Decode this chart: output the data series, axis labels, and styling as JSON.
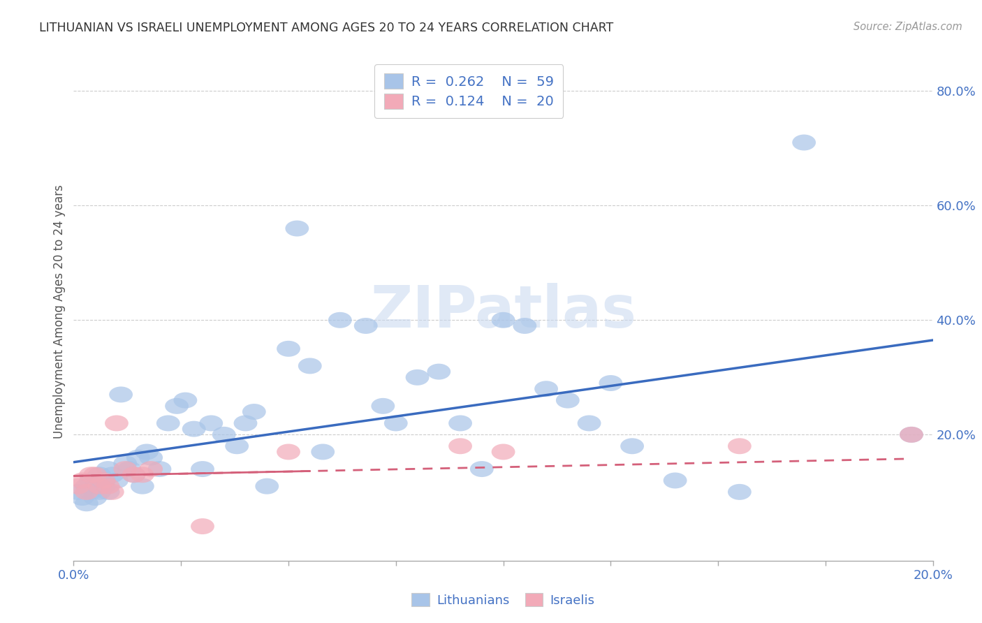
{
  "title": "LITHUANIAN VS ISRAELI UNEMPLOYMENT AMONG AGES 20 TO 24 YEARS CORRELATION CHART",
  "source": "Source: ZipAtlas.com",
  "ylabel": "Unemployment Among Ages 20 to 24 years",
  "xlim": [
    0.0,
    0.2
  ],
  "ylim": [
    -0.02,
    0.85
  ],
  "yticks": [
    0.0,
    0.2,
    0.4,
    0.6,
    0.8
  ],
  "ytick_labels": [
    "",
    "20.0%",
    "40.0%",
    "60.0%",
    "80.0%"
  ],
  "legend_r1": "0.262",
  "legend_n1": "59",
  "legend_r2": "0.124",
  "legend_n2": "20",
  "blue_color": "#a8c4e8",
  "pink_color": "#f2aab8",
  "line_blue": "#3a6bbf",
  "line_pink": "#d4607a",
  "axis_label_color": "#4472c4",
  "background_color": "#ffffff",
  "watermark": "ZIPatlas",
  "lith_scatter_x": [
    0.001,
    0.002,
    0.003,
    0.003,
    0.004,
    0.004,
    0.005,
    0.005,
    0.006,
    0.006,
    0.007,
    0.007,
    0.008,
    0.008,
    0.009,
    0.01,
    0.011,
    0.012,
    0.013,
    0.014,
    0.015,
    0.016,
    0.017,
    0.018,
    0.02,
    0.022,
    0.024,
    0.026,
    0.028,
    0.03,
    0.032,
    0.035,
    0.038,
    0.04,
    0.042,
    0.045,
    0.05,
    0.052,
    0.055,
    0.058,
    0.062,
    0.068,
    0.072,
    0.075,
    0.08,
    0.085,
    0.09,
    0.095,
    0.1,
    0.105,
    0.11,
    0.115,
    0.12,
    0.125,
    0.13,
    0.14,
    0.155,
    0.17,
    0.195
  ],
  "lith_scatter_y": [
    0.1,
    0.09,
    0.11,
    0.08,
    0.12,
    0.1,
    0.09,
    0.11,
    0.1,
    0.13,
    0.11,
    0.12,
    0.1,
    0.14,
    0.13,
    0.12,
    0.27,
    0.15,
    0.14,
    0.13,
    0.16,
    0.11,
    0.17,
    0.16,
    0.14,
    0.22,
    0.25,
    0.26,
    0.21,
    0.14,
    0.22,
    0.2,
    0.18,
    0.22,
    0.24,
    0.11,
    0.35,
    0.56,
    0.32,
    0.17,
    0.4,
    0.39,
    0.25,
    0.22,
    0.3,
    0.31,
    0.22,
    0.14,
    0.4,
    0.39,
    0.28,
    0.26,
    0.22,
    0.29,
    0.18,
    0.12,
    0.1,
    0.71,
    0.2
  ],
  "israel_scatter_x": [
    0.001,
    0.002,
    0.003,
    0.004,
    0.005,
    0.006,
    0.007,
    0.008,
    0.009,
    0.01,
    0.012,
    0.014,
    0.016,
    0.018,
    0.03,
    0.05,
    0.09,
    0.1,
    0.155,
    0.195
  ],
  "israel_scatter_y": [
    0.11,
    0.12,
    0.1,
    0.13,
    0.13,
    0.11,
    0.12,
    0.11,
    0.1,
    0.22,
    0.14,
    0.13,
    0.13,
    0.14,
    0.04,
    0.17,
    0.18,
    0.17,
    0.18,
    0.2
  ],
  "lith_line_x": [
    0.0,
    0.2
  ],
  "lith_line_y": [
    0.152,
    0.365
  ],
  "israel_line_x": [
    0.0,
    0.195
  ],
  "israel_line_y": [
    0.128,
    0.158
  ]
}
